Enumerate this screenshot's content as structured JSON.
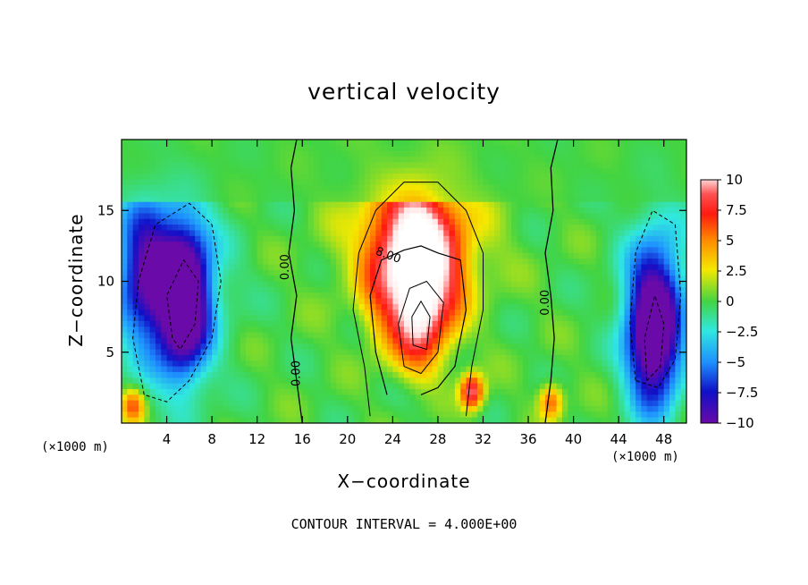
{
  "chart_data": {
    "type": "heatmap",
    "title": "vertical velocity",
    "xlabel": "X−coordinate",
    "ylabel": "Z−coordinate",
    "x_unit_left": "(×1000 m)",
    "x_unit_right": "(×1000 m)",
    "footer": "CONTOUR INTERVAL = 4.000E+00",
    "xlim": [
      0,
      50
    ],
    "ylim": [
      0,
      20
    ],
    "x_ticks": [
      4,
      8,
      12,
      16,
      20,
      24,
      28,
      32,
      36,
      40,
      44,
      48
    ],
    "x_tick_labels": [
      "4",
      "8",
      "12",
      "16",
      "20",
      "24",
      "28",
      "32",
      "36",
      "40",
      "44",
      "48"
    ],
    "y_ticks": [
      5,
      10,
      15
    ],
    "y_tick_labels": [
      "5",
      "10",
      "15"
    ],
    "colorbar": {
      "min": -10,
      "max": 10,
      "ticks": [
        10,
        7.5,
        5,
        2.5,
        0,
        -2.5,
        -5,
        -7.5,
        -10
      ],
      "tick_labels": [
        "10",
        "7.5",
        "5",
        "2.5",
        "0",
        "−2.5",
        "−5",
        "−7.5",
        "−10"
      ],
      "colors": [
        "#ffd0d0",
        "#ff2a1a",
        "#ff8c00",
        "#f5e800",
        "#42d442",
        "#30e8e0",
        "#1e90ff",
        "#1010c8",
        "#6a0aa8"
      ]
    },
    "features": [
      {
        "kind": "updraft",
        "x": 26,
        "z": 9,
        "peak": 14
      },
      {
        "kind": "updraft",
        "x": 31,
        "z": 2.2,
        "peak": 10
      },
      {
        "kind": "updraft",
        "x": 38,
        "z": 1.5,
        "peak": 6
      },
      {
        "kind": "updraft",
        "x": 1,
        "z": 1.2,
        "peak": 6
      },
      {
        "kind": "downdraft",
        "x": 5.5,
        "z": 8.5,
        "peak": -12
      },
      {
        "kind": "downdraft",
        "x": 2,
        "z": 11,
        "peak": -6
      },
      {
        "kind": "downdraft",
        "x": 47,
        "z": 6,
        "peak": -11
      }
    ],
    "contour_labels": [
      "8.00",
      "0.00",
      "0.00",
      "0.00"
    ]
  }
}
